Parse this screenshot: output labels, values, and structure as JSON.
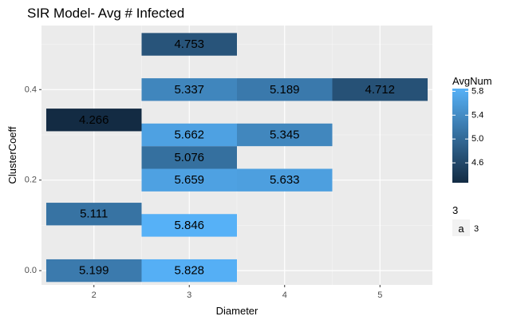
{
  "chart_data": {
    "type": "heatmap",
    "title": "SIR Model- Avg # Infected",
    "xlabel": "Diameter",
    "ylabel": "ClusterCoeff",
    "x_ticks": [
      2,
      3,
      4,
      5
    ],
    "y_ticks": [
      "0.0",
      "0.2",
      "0.4"
    ],
    "xlim": [
      1.45,
      5.55
    ],
    "ylim": [
      -0.0315,
      0.5415
    ],
    "cell_width": 1,
    "cell_height": 0.05,
    "grid": true,
    "cells": [
      {
        "x": 2,
        "y": 0.0,
        "value": 5.199,
        "label": "5.199"
      },
      {
        "x": 2,
        "y": 0.125,
        "value": 5.111,
        "label": "5.111"
      },
      {
        "x": 2,
        "y": 0.333,
        "value": 4.266,
        "label": "4.266"
      },
      {
        "x": 3,
        "y": 0.0,
        "value": 5.828,
        "label": "5.828"
      },
      {
        "x": 3,
        "y": 0.1,
        "value": 5.846,
        "label": "5.846"
      },
      {
        "x": 3,
        "y": 0.2,
        "value": 5.659,
        "label": "5.659"
      },
      {
        "x": 3,
        "y": 0.25,
        "value": 5.076,
        "label": "5.076"
      },
      {
        "x": 3,
        "y": 0.3,
        "value": 5.662,
        "label": "5.662"
      },
      {
        "x": 3,
        "y": 0.4,
        "value": 5.337,
        "label": "5.337"
      },
      {
        "x": 3,
        "y": 0.5,
        "value": 4.753,
        "label": "4.753"
      },
      {
        "x": 4,
        "y": 0.2,
        "value": 5.633,
        "label": "5.633"
      },
      {
        "x": 4,
        "y": 0.3,
        "value": 5.345,
        "label": "5.345"
      },
      {
        "x": 4,
        "y": 0.4,
        "value": 5.189,
        "label": "5.189"
      },
      {
        "x": 5,
        "y": 0.4,
        "value": 4.712,
        "label": "4.712"
      }
    ],
    "color_scale": {
      "title": "AvgNum",
      "min": 4.266,
      "max": 5.846,
      "low_color": "#132B43",
      "high_color": "#56B1F7",
      "ticks": [
        "4.6",
        "5.0",
        "5.4",
        "5.8"
      ],
      "placement": "right"
    },
    "size_legend": {
      "title": "3",
      "key": "a",
      "label": "3",
      "placement": "right"
    }
  }
}
